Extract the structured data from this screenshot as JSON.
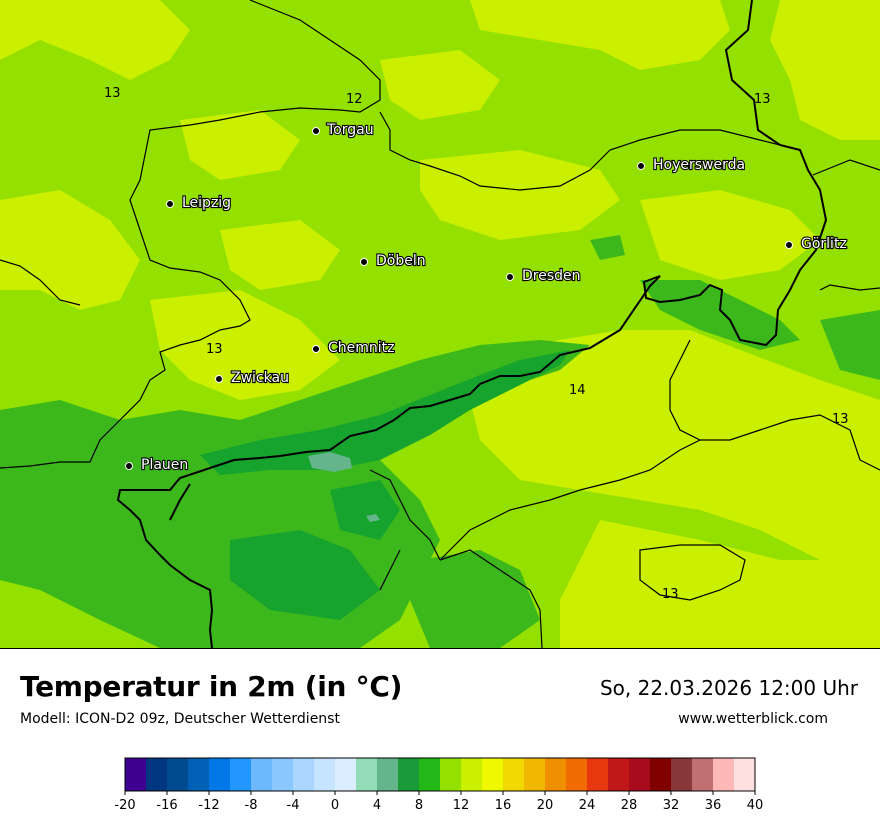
{
  "title": "Temperatur in 2m (in °C)",
  "subtitle": "Modell: ICON-D2 09z, Deutscher Wetterdienst",
  "datetime": "So, 22.03.2026 12:00 Uhr",
  "website": "www.wetterblick.com",
  "colors": {
    "base": "#94e000",
    "warm": "#caf000",
    "cool": "#3cb81c",
    "cold": "#16a32e"
  },
  "cities": [
    {
      "name": "Torgau"
    },
    {
      "name": "Hoyerswerda"
    },
    {
      "name": "Leipzig"
    },
    {
      "name": "Görlitz"
    },
    {
      "name": "Döbeln"
    },
    {
      "name": "Dresden"
    },
    {
      "name": "Chemnitz"
    },
    {
      "name": "Zwickau"
    },
    {
      "name": "Plauen"
    }
  ],
  "iso_labels": [
    "13",
    "12",
    "13",
    "13",
    "14",
    "13",
    "13"
  ],
  "legend": {
    "ticks": [
      "-20",
      "-16",
      "-12",
      "-8",
      "-4",
      "0",
      "4",
      "8",
      "12",
      "16",
      "20",
      "24",
      "28",
      "32",
      "36",
      "40"
    ],
    "colors": [
      "#3d0090",
      "#00357f",
      "#004b8f",
      "#0060b5",
      "#0078e8",
      "#2298ff",
      "#6db8ff",
      "#8ac6ff",
      "#aad6ff",
      "#c6e4ff",
      "#daeeff",
      "#92dcb8",
      "#64b48c",
      "#1a9a38",
      "#22b818",
      "#94e000",
      "#caf000",
      "#f0f800",
      "#f0d800",
      "#f0b800",
      "#f09000",
      "#f06c00",
      "#e83810",
      "#c01818",
      "#a80c1c",
      "#800000",
      "#883838",
      "#c07070",
      "#ffb8b8",
      "#ffe0e0"
    ]
  }
}
